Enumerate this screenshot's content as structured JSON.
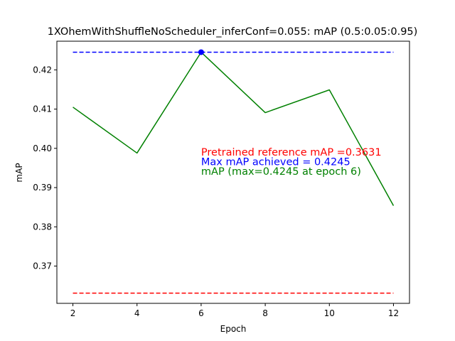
{
  "chart_data": {
    "type": "line",
    "title": "1XOhemWithShuffleNoScheduler_inferConf=0.055:  mAP (0.5:0.05:0.95)",
    "xlabel": "Epoch",
    "ylabel": "mAP",
    "xlim": [
      1.5,
      12.5
    ],
    "ylim": [
      0.3605,
      0.4273
    ],
    "xticks": [
      2,
      4,
      6,
      8,
      10,
      12
    ],
    "yticks": [
      0.37,
      0.38,
      0.39,
      0.4,
      0.41,
      0.42
    ],
    "ytick_labels": [
      "0.37",
      "0.38",
      "0.39",
      "0.40",
      "0.41",
      "0.42"
    ],
    "grid": false,
    "series": [
      {
        "name": "mAP (max=0.4245 at epoch 6)",
        "color": "#008000",
        "style": "solid",
        "x": [
          2,
          4,
          6,
          8,
          10,
          12
        ],
        "y": [
          0.4105,
          0.3988,
          0.4245,
          0.4091,
          0.4149,
          0.3854
        ]
      }
    ],
    "reference_lines": [
      {
        "name": "Max mAP achieved = 0.4245",
        "value": 0.4245,
        "color": "#0000ff",
        "style": "dashed",
        "x_range": [
          2,
          12
        ]
      },
      {
        "name": "Pretrained reference mAP =0.3631",
        "value": 0.3631,
        "color": "#ff0000",
        "style": "dashed",
        "x_range": [
          2,
          12
        ]
      }
    ],
    "max_marker": {
      "x": 6,
      "y": 0.4245,
      "color": "#0000ff"
    },
    "annotations": [
      {
        "text": "Pretrained reference mAP =0.3631",
        "color": "#ff0000"
      },
      {
        "text": "Max mAP achieved = 0.4245",
        "color": "#0000ff"
      },
      {
        "text": "mAP (max=0.4245 at epoch 6)",
        "color": "#008000"
      }
    ]
  }
}
